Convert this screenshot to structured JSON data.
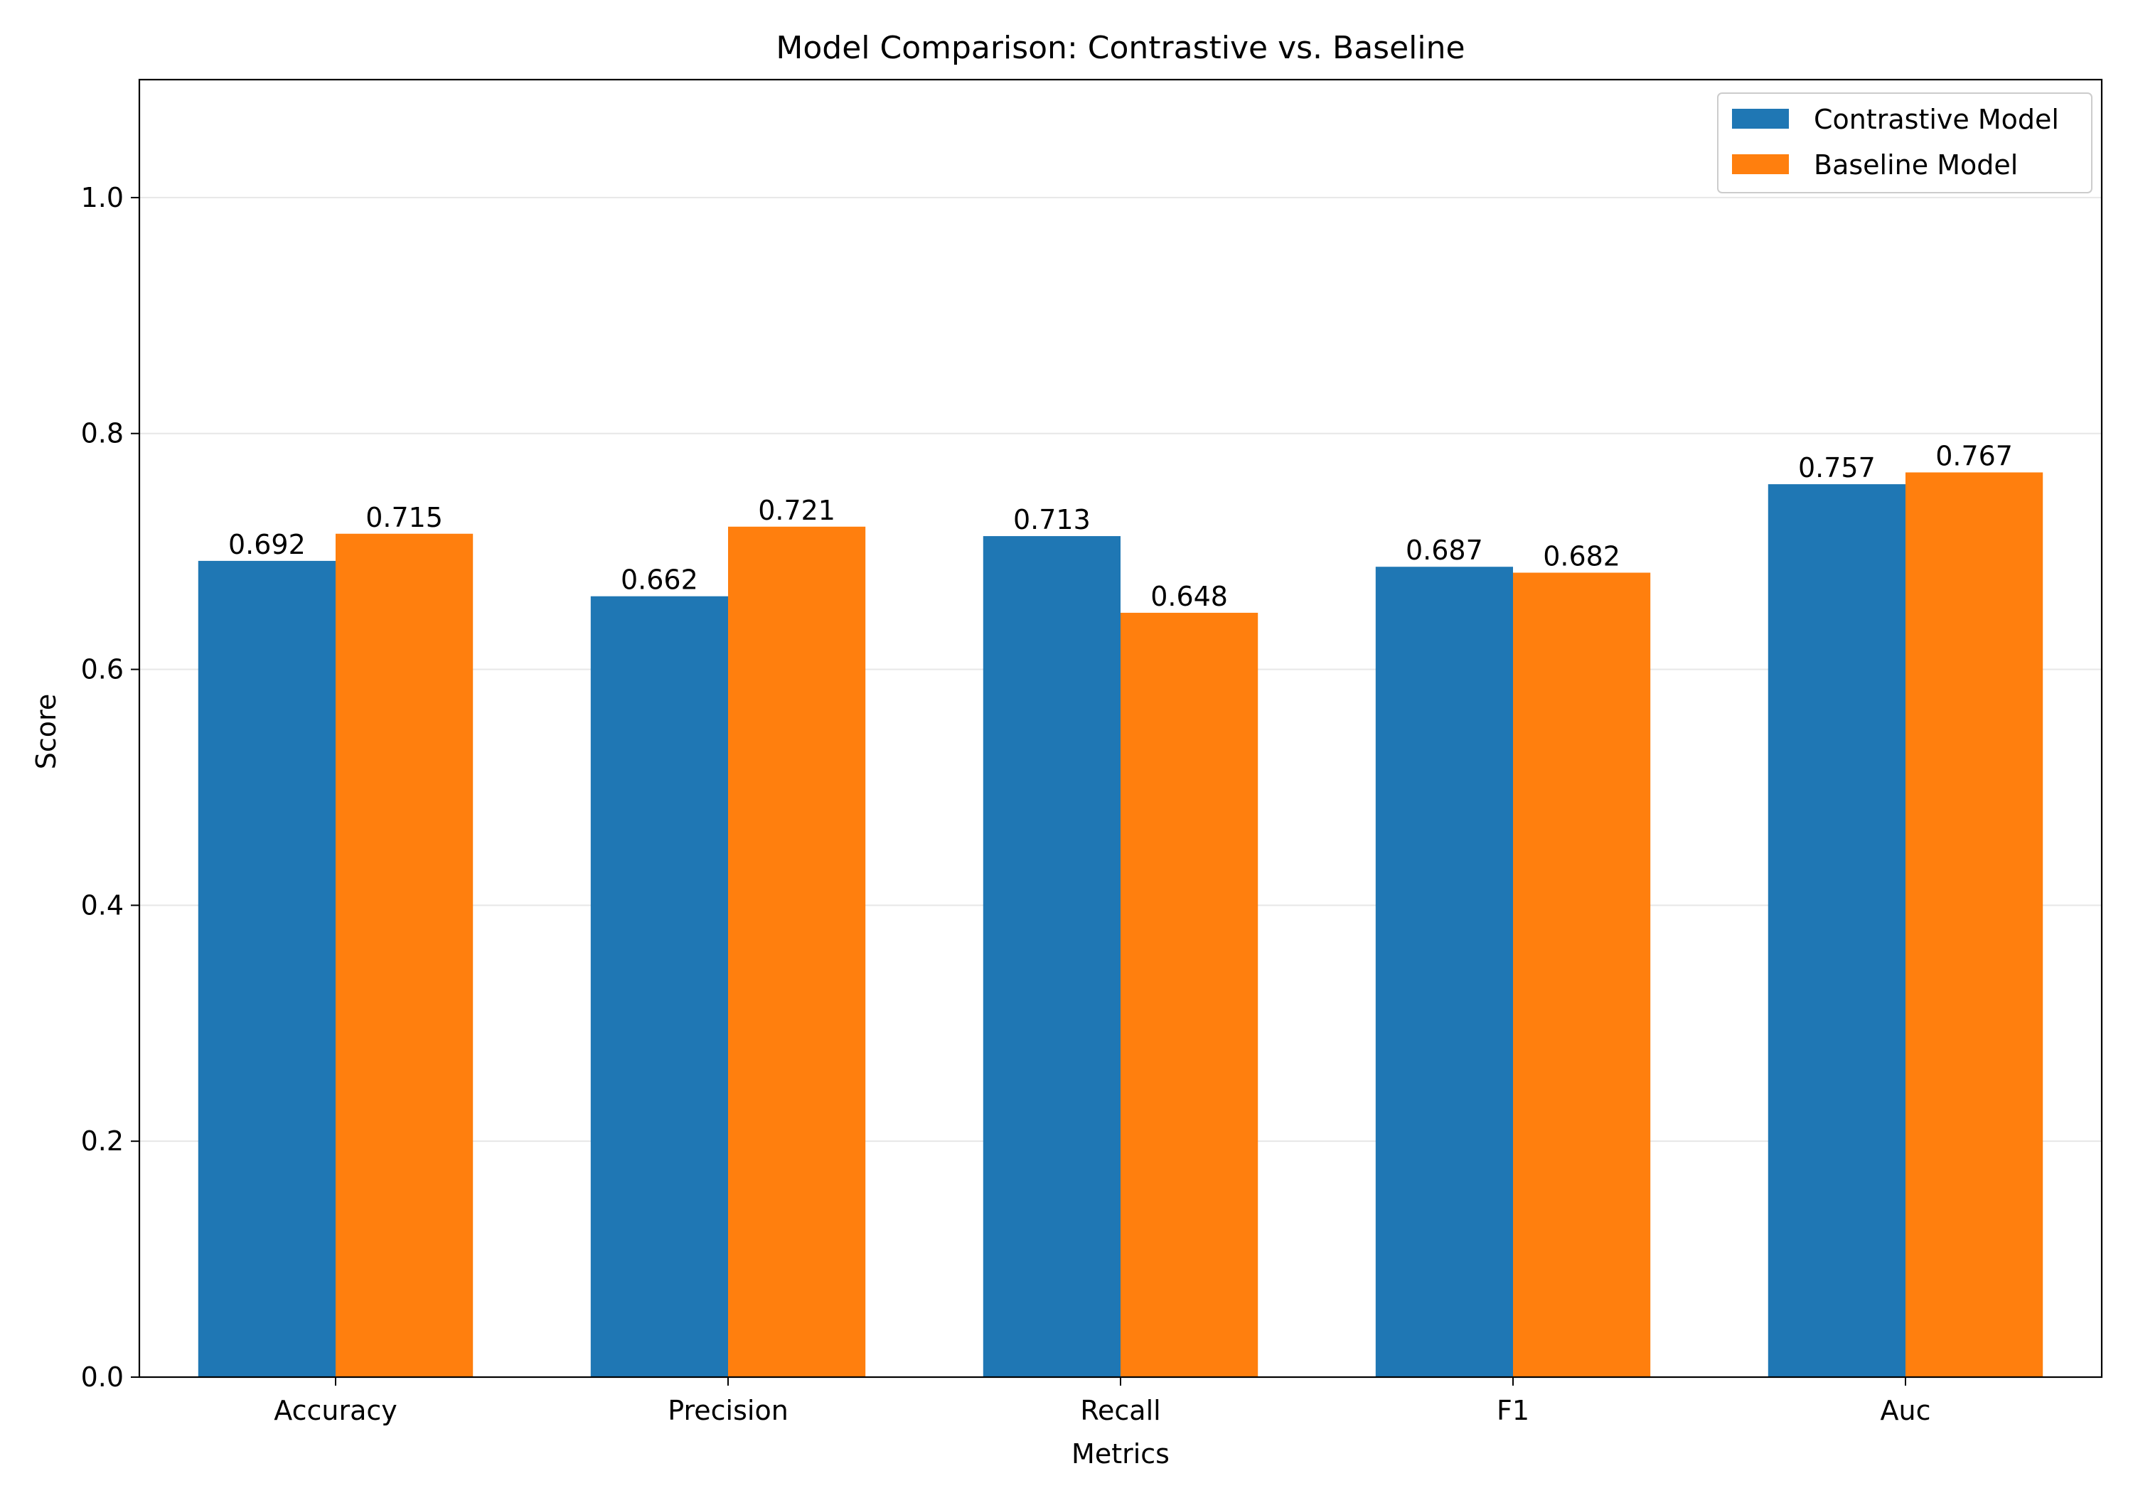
{
  "chart_data": {
    "type": "bar",
    "title": "Model Comparison: Contrastive vs. Baseline",
    "xlabel": "Metrics",
    "ylabel": "Score",
    "categories": [
      "Accuracy",
      "Precision",
      "Recall",
      "F1",
      "Auc"
    ],
    "series": [
      {
        "name": "Contrastive Model",
        "color": "#1f77b4",
        "values": [
          0.692,
          0.662,
          0.713,
          0.687,
          0.757
        ]
      },
      {
        "name": "Baseline Model",
        "color": "#ff7f0e",
        "values": [
          0.715,
          0.721,
          0.648,
          0.682,
          0.767
        ]
      }
    ],
    "ylim": [
      0,
      1.1
    ],
    "yticks": [
      0.0,
      0.2,
      0.4,
      0.6,
      0.8,
      1.0
    ],
    "ytick_labels": [
      "0.0",
      "0.2",
      "0.4",
      "0.6",
      "0.8",
      "1.0"
    ],
    "grid": "horizontal",
    "legend_position": "top-right",
    "data_labels": true
  }
}
